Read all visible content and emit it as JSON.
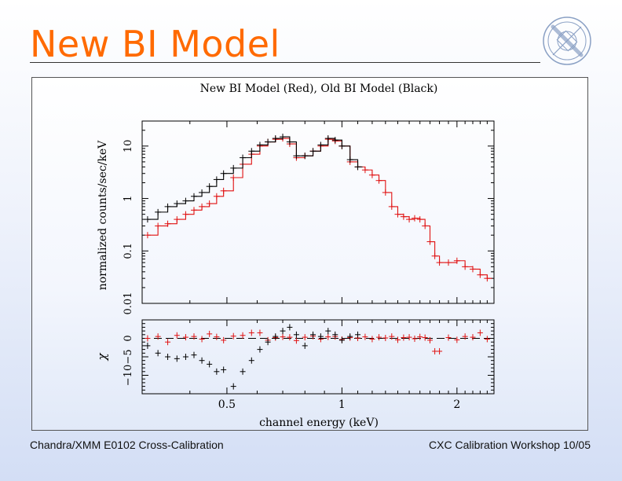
{
  "slide": {
    "title": "New BI Model",
    "footer_left": "Chandra/XMM E0102 Cross-Calibration",
    "footer_right": "CXC Calibration Workshop 10/05",
    "title_color": "#ff6a00",
    "logo_icon": "chandra-observatory-seal-icon"
  },
  "chart_data": {
    "type": "scatter",
    "title": "New BI Model (Red), Old BI Model (Black)",
    "top_panel": {
      "ylabel": "normalized counts/sec/keV",
      "yscale": "log",
      "ylim": [
        0.01,
        30
      ],
      "ytick_labels": [
        "0.01",
        "0.1",
        "1",
        "10"
      ],
      "yticks": [
        0.01,
        0.1,
        1,
        10
      ]
    },
    "bottom_panel": {
      "ylabel": "χ",
      "ylim": [
        -15,
        5
      ],
      "ytick_labels": [
        "−10",
        "−5",
        "0"
      ],
      "yticks": [
        -10,
        -5,
        0
      ]
    },
    "x": {
      "label": "channel energy (keV)",
      "scale": "log",
      "xlim": [
        0.3,
        2.5
      ],
      "tick_labels": [
        "0.5",
        "1",
        "2"
      ],
      "ticks": [
        0.5,
        1,
        2
      ]
    },
    "series": [
      {
        "name": "New BI Model (data)",
        "color": "#e01010",
        "x": [
          0.31,
          0.33,
          0.35,
          0.37,
          0.39,
          0.41,
          0.43,
          0.45,
          0.47,
          0.49,
          0.52,
          0.55,
          0.58,
          0.61,
          0.64,
          0.67,
          0.7,
          0.73,
          0.76,
          0.8,
          0.84,
          0.88,
          0.92,
          0.96,
          1.0,
          1.05,
          1.1,
          1.15,
          1.2,
          1.25,
          1.3,
          1.35,
          1.4,
          1.45,
          1.5,
          1.55,
          1.6,
          1.65,
          1.7,
          1.75,
          1.8,
          1.9,
          2.0,
          2.1,
          2.2,
          2.3,
          2.4
        ],
        "y": [
          0.2,
          0.3,
          0.33,
          0.4,
          0.5,
          0.6,
          0.7,
          0.8,
          1.1,
          1.4,
          2.5,
          4.5,
          7,
          10,
          12,
          13.5,
          14,
          11,
          6,
          6.5,
          8,
          10,
          13.5,
          12.5,
          10,
          5,
          4,
          3.5,
          2.8,
          2.2,
          1.3,
          0.7,
          0.5,
          0.45,
          0.4,
          0.42,
          0.4,
          0.3,
          0.15,
          0.08,
          0.06,
          0.06,
          0.065,
          0.05,
          0.045,
          0.035,
          0.03
        ],
        "residual": [
          0,
          0.5,
          -1,
          0.8,
          0.3,
          0.5,
          -0.2,
          1.2,
          0.4,
          -0.5,
          0.6,
          0.8,
          1.5,
          1.5,
          -0.5,
          0.2,
          0.4,
          0.3,
          -0.6,
          0.3,
          0.6,
          -0.2,
          0.4,
          0.5,
          -0.3,
          0.2,
          0.1,
          0.4,
          -0.2,
          0.3,
          0.1,
          0.5,
          -0.4,
          0.2,
          0.3,
          -0.1,
          0.4,
          0.2,
          -0.5,
          -3.5,
          -3.5,
          0.2,
          -0.4,
          0.5,
          0.3,
          1.5,
          -0.2
        ]
      },
      {
        "name": "Old BI Model (data)",
        "color": "#000000",
        "x": [
          0.31,
          0.33,
          0.35,
          0.37,
          0.39,
          0.41,
          0.43,
          0.45,
          0.47,
          0.49,
          0.52,
          0.55,
          0.58,
          0.61,
          0.64,
          0.67,
          0.7,
          0.73,
          0.76,
          0.8,
          0.84,
          0.88,
          0.92,
          0.96,
          1.0,
          1.05,
          1.1
        ],
        "y": [
          0.4,
          0.55,
          0.7,
          0.8,
          0.9,
          1.1,
          1.3,
          1.7,
          2.3,
          3,
          3.8,
          6,
          8,
          10.5,
          12,
          14,
          15,
          12,
          6.5,
          6.5,
          8,
          10.5,
          14,
          13,
          10,
          5.5,
          4
        ],
        "residual": [
          -2,
          -4,
          -5,
          -5.5,
          -5,
          -4.5,
          -6,
          -7,
          -9,
          -8.5,
          -13,
          -9,
          -6,
          -3,
          -1,
          0.5,
          2,
          3,
          1,
          -2,
          1,
          0.5,
          2,
          1,
          -0.5,
          0.5,
          1
        ]
      }
    ]
  }
}
